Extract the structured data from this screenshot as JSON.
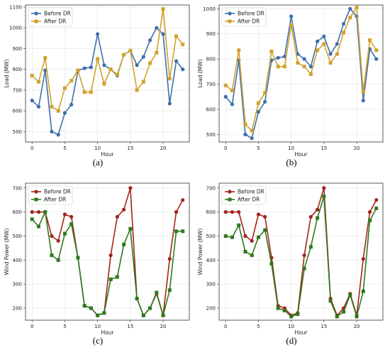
{
  "captions": [
    "(a)",
    "(b)",
    "(c)",
    "(d)"
  ],
  "chart_data": [
    {
      "type": "line",
      "caption": "(a)",
      "xlabel": "Hour",
      "ylabel": "Load (MW)",
      "xlim": [
        -1,
        24
      ],
      "ylim": [
        450,
        1110
      ],
      "xticks": [
        0,
        5,
        10,
        15,
        20
      ],
      "yticks": [
        500,
        600,
        700,
        800,
        900,
        1000,
        1100
      ],
      "grid": true,
      "legend": "top-left",
      "x": [
        0,
        1,
        2,
        3,
        4,
        5,
        6,
        7,
        8,
        9,
        10,
        11,
        12,
        13,
        14,
        15,
        16,
        17,
        18,
        19,
        20,
        21,
        22,
        23
      ],
      "series": [
        {
          "name": "Before DR",
          "color": "#3d6fae",
          "marker": "circle",
          "values": [
            650,
            620,
            795,
            500,
            485,
            590,
            630,
            795,
            805,
            810,
            970,
            820,
            800,
            770,
            870,
            890,
            820,
            860,
            940,
            1000,
            970,
            635,
            840,
            800
          ]
        },
        {
          "name": "After DR",
          "color": "#d3a02a",
          "marker": "square",
          "values": [
            770,
            740,
            855,
            620,
            600,
            710,
            745,
            795,
            690,
            690,
            850,
            730,
            800,
            775,
            870,
            890,
            700,
            740,
            830,
            880,
            1090,
            755,
            960,
            920
          ]
        }
      ]
    },
    {
      "type": "line",
      "caption": "(b)",
      "xlabel": "Hour",
      "ylabel": "Load (MW)",
      "xlim": [
        -1,
        24
      ],
      "ylim": [
        470,
        1015
      ],
      "xticks": [
        0,
        5,
        10,
        15,
        20
      ],
      "yticks": [
        500,
        600,
        700,
        800,
        900,
        1000
      ],
      "grid": true,
      "legend": "top-left",
      "x": [
        0,
        1,
        2,
        3,
        4,
        5,
        6,
        7,
        8,
        9,
        10,
        11,
        12,
        13,
        14,
        15,
        16,
        17,
        18,
        19,
        20,
        21,
        22,
        23
      ],
      "series": [
        {
          "name": "Before DR",
          "color": "#3d6fae",
          "marker": "circle",
          "values": [
            650,
            620,
            795,
            500,
            485,
            590,
            630,
            795,
            805,
            810,
            970,
            820,
            800,
            770,
            870,
            890,
            820,
            860,
            940,
            1000,
            970,
            635,
            840,
            800
          ]
        },
        {
          "name": "After DR",
          "color": "#d3a02a",
          "marker": "square",
          "values": [
            695,
            675,
            835,
            540,
            515,
            625,
            665,
            830,
            770,
            770,
            935,
            785,
            770,
            740,
            835,
            860,
            785,
            820,
            905,
            965,
            1005,
            670,
            875,
            835
          ]
        }
      ]
    },
    {
      "type": "line",
      "caption": "(c)",
      "xlabel": "Hour",
      "ylabel": "Wind Power (MW)",
      "xlim": [
        -1,
        24
      ],
      "ylim": [
        150,
        720
      ],
      "xticks": [
        0,
        5,
        10,
        15,
        20
      ],
      "yticks": [
        200,
        300,
        400,
        500,
        600,
        700
      ],
      "grid": true,
      "legend": "top-left",
      "x": [
        0,
        1,
        2,
        3,
        4,
        5,
        6,
        7,
        8,
        9,
        10,
        11,
        12,
        13,
        14,
        15,
        16,
        17,
        18,
        19,
        20,
        21,
        22,
        23
      ],
      "series": [
        {
          "name": "Before DR",
          "color": "#a3241b",
          "marker": "circle",
          "values": [
            600,
            600,
            600,
            500,
            480,
            590,
            580,
            410,
            210,
            200,
            170,
            180,
            420,
            580,
            610,
            700,
            240,
            170,
            200,
            260,
            170,
            405,
            600,
            650
          ]
        },
        {
          "name": "After DR",
          "color": "#2e7a1e",
          "marker": "square",
          "values": [
            570,
            540,
            600,
            420,
            400,
            510,
            550,
            410,
            210,
            200,
            170,
            180,
            320,
            330,
            465,
            530,
            240,
            170,
            200,
            265,
            170,
            275,
            520,
            520
          ]
        }
      ]
    },
    {
      "type": "line",
      "caption": "(d)",
      "xlabel": "Hour",
      "ylabel": "Wind Power (MW)",
      "xlim": [
        -1,
        24
      ],
      "ylim": [
        150,
        720
      ],
      "xticks": [
        0,
        5,
        10,
        15,
        20
      ],
      "yticks": [
        200,
        300,
        400,
        500,
        600,
        700
      ],
      "grid": true,
      "legend": "top-left",
      "x": [
        0,
        1,
        2,
        3,
        4,
        5,
        6,
        7,
        8,
        9,
        10,
        11,
        12,
        13,
        14,
        15,
        16,
        17,
        18,
        19,
        20,
        21,
        22,
        23
      ],
      "series": [
        {
          "name": "Before DR",
          "color": "#a3241b",
          "marker": "circle",
          "values": [
            600,
            600,
            600,
            500,
            480,
            590,
            580,
            410,
            210,
            200,
            170,
            180,
            420,
            580,
            610,
            700,
            240,
            170,
            200,
            260,
            170,
            405,
            600,
            650
          ]
        },
        {
          "name": "After DR",
          "color": "#2e7a1e",
          "marker": "square",
          "values": [
            500,
            495,
            545,
            435,
            420,
            495,
            525,
            385,
            200,
            190,
            165,
            175,
            365,
            455,
            575,
            665,
            230,
            165,
            185,
            255,
            165,
            270,
            565,
            615
          ]
        }
      ]
    }
  ]
}
